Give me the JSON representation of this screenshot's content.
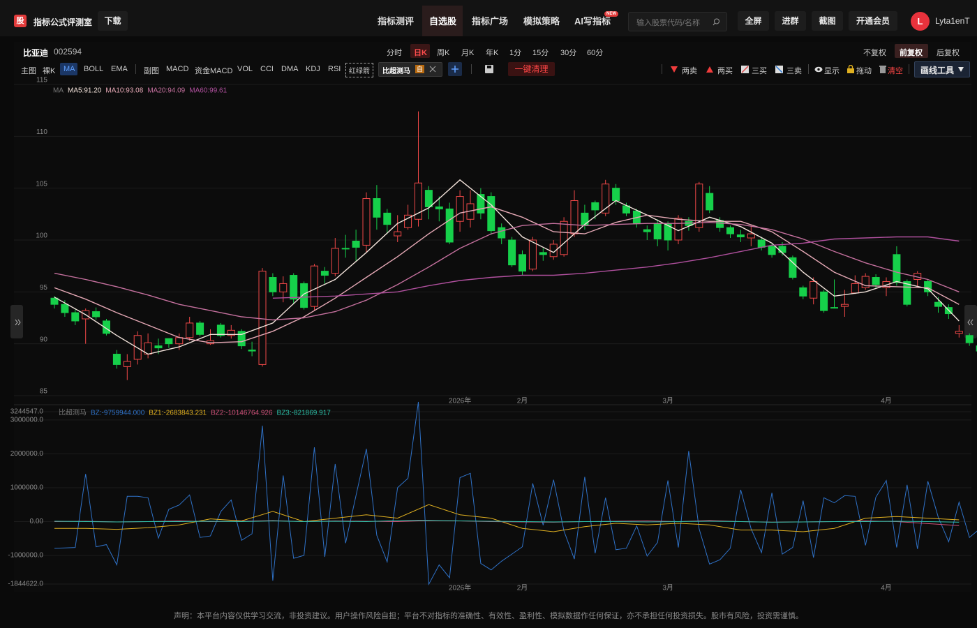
{
  "header": {
    "logo": "股",
    "app_title": "指标公式评测室",
    "download": "下载",
    "nav": [
      "指标测评",
      "自选股",
      "指标广场",
      "模拟策略",
      "AI写指标"
    ],
    "nav_badge": "NEW",
    "search_placeholder": "输入股票代码/名称",
    "buttons": [
      "全屏",
      "进群",
      "截图",
      "开通会员"
    ],
    "avatar": "L",
    "username": "Lyta1enT"
  },
  "stock": {
    "name": "比亚迪",
    "code": "002594",
    "periods": [
      "分时",
      "日K",
      "周K",
      "月K",
      "年K",
      "1分",
      "15分",
      "30分",
      "60分"
    ],
    "adjust": [
      "不复权",
      "前复权",
      "后复权"
    ]
  },
  "toolbar": {
    "main_label": "主图",
    "main": [
      "裸K",
      "MA",
      "BOLL",
      "EMA"
    ],
    "sub_label": "副图",
    "sub": [
      "MACD",
      "资金MACD",
      "VOL",
      "CCI",
      "DMA",
      "KDJ",
      "RSI"
    ],
    "arrow": "红绿箭",
    "chip": "比超测马",
    "chip_tag": "自",
    "clear": "一键清理",
    "signals": [
      "两卖",
      "两买",
      "三买",
      "三卖"
    ],
    "view": [
      "显示",
      "拖动",
      "清空"
    ],
    "draw_tool": "画线工具"
  },
  "chart_data": [
    {
      "type": "candlestick",
      "legend_title": "MA",
      "categories": [
        null,
        null,
        null,
        null,
        null,
        null,
        null,
        null,
        null,
        null,
        null,
        null,
        null,
        null,
        null,
        null,
        null,
        null,
        null,
        null,
        null,
        null,
        null,
        null,
        null,
        null,
        null,
        null,
        null,
        null,
        null,
        null,
        null,
        null,
        null,
        null,
        null,
        null,
        null,
        "2026年",
        null,
        null,
        null,
        null,
        null,
        "2月",
        null,
        null,
        null,
        null,
        null,
        null,
        null,
        null,
        null,
        null,
        null,
        null,
        null,
        "3月",
        null,
        null,
        null,
        null,
        null,
        null,
        null,
        null,
        null,
        null,
        null,
        null,
        null,
        null,
        null,
        null,
        null,
        null,
        null,
        null,
        "4月",
        null,
        null,
        null,
        null,
        null,
        null,
        null,
        null,
        null
      ],
      "open": [
        94.4,
        93.8,
        93.0,
        92.4,
        93.1,
        92.2,
        89.0,
        87.8,
        88.5,
        89.0,
        89.8,
        90.5,
        90.0,
        90.6,
        92.0,
        90.0,
        91.8,
        90.8,
        91.2,
        89.4,
        88.0,
        96.4,
        95.0,
        96.6,
        95.8,
        93.6,
        97.0,
        96.8,
        99.2,
        99.9,
        99.5,
        104.0,
        102.6,
        100.4,
        101.2,
        102.0,
        104.8,
        103.2,
        103.0,
        101.8,
        102.0,
        104.4,
        104.2,
        101.2,
        100.0,
        98.6,
        97.2,
        98.8,
        98.4,
        98.6,
        100.6,
        102.6,
        103.6,
        102.6,
        105.0,
        103.3,
        102.8,
        101.0,
        101.6,
        101.6,
        100.0,
        101.8,
        101.2,
        104.5,
        101.9,
        101.2,
        100.5,
        100.2,
        100.0,
        99.4,
        99.4,
        98.3,
        95.4,
        94.4,
        95.0,
        93.5,
        93.6,
        94.9,
        95.4,
        96.4,
        95.4,
        98.6,
        96.0,
        96.2,
        96.0,
        94.0,
        93.5,
        91.0,
        90.8,
        89.8
      ],
      "high": [
        94.6,
        94.2,
        93.3,
        93.4,
        93.5,
        92.4,
        89.4,
        89.0,
        91.2,
        91.0,
        90.5,
        90.5,
        91.0,
        92.6,
        92.2,
        91.4,
        92.0,
        91.8,
        91.4,
        90.2,
        97.3,
        96.8,
        96.5,
        96.8,
        96.0,
        97.7,
        97.4,
        100.2,
        100.5,
        101.0,
        104.6,
        105.3,
        103.0,
        102.4,
        103.4,
        112.4,
        105.2,
        104.2,
        103.6,
        104.8,
        104.8,
        105.0,
        104.6,
        101.6,
        100.3,
        99.0,
        100.3,
        99.2,
        100.0,
        102.2,
        104.8,
        103.4,
        103.8,
        105.8,
        105.4,
        103.6,
        103.0,
        101.4,
        102.0,
        101.8,
        102.4,
        102.2,
        105.6,
        105.2,
        102.2,
        101.4,
        101.0,
        101.4,
        100.3,
        99.6,
        99.8,
        98.5,
        95.6,
        96.4,
        95.2,
        96.2,
        95.2,
        96.6,
        96.8,
        96.7,
        96.4,
        99.4,
        96.2,
        97.0,
        96.2,
        94.5,
        93.8,
        91.8,
        91.0,
        90.5
      ],
      "low": [
        93.4,
        92.6,
        91.8,
        90.0,
        92.3,
        90.8,
        87.6,
        86.5,
        88.0,
        88.6,
        89.0,
        89.6,
        89.4,
        90.3,
        90.7,
        89.9,
        90.6,
        90.5,
        89.5,
        88.8,
        87.8,
        94.6,
        94.0,
        93.8,
        93.3,
        93.2,
        95.8,
        96.5,
        98.3,
        98.0,
        98.8,
        101.0,
        100.6,
        99.8,
        101.0,
        101.3,
        102.0,
        101.8,
        99.6,
        100.8,
        101.2,
        102.0,
        100.5,
        99.6,
        97.4,
        96.6,
        97.0,
        98.0,
        98.1,
        98.4,
        100.3,
        101.0,
        102.0,
        102.3,
        103.4,
        102.3,
        101.2,
        100.0,
        99.4,
        99.0,
        99.6,
        100.9,
        100.8,
        102.6,
        100.8,
        100.2,
        99.8,
        99.4,
        99.0,
        98.3,
        98.5,
        96.2,
        94.3,
        93.8,
        93.0,
        93.4,
        92.6,
        94.8,
        95.2,
        95.3,
        94.6,
        95.6,
        93.6,
        95.5,
        94.6,
        93.0,
        92.4,
        90.6,
        89.8,
        89.0
      ],
      "close": [
        93.8,
        93.0,
        92.2,
        93.2,
        92.6,
        91.0,
        88.0,
        88.3,
        90.8,
        90.1,
        89.6,
        90.0,
        90.6,
        92.0,
        90.9,
        90.3,
        90.8,
        91.3,
        89.8,
        89.3,
        97.0,
        95.0,
        95.8,
        94.3,
        93.5,
        97.5,
        96.6,
        99.2,
        99.2,
        99.3,
        104.0,
        102.2,
        101.5,
        100.8,
        102.4,
        105.5,
        103.2,
        103.0,
        99.8,
        104.2,
        103.5,
        102.6,
        100.9,
        100.2,
        97.6,
        97.0,
        100.0,
        98.6,
        99.6,
        101.8,
        103.8,
        101.4,
        102.9,
        105.4,
        103.8,
        102.6,
        101.6,
        100.8,
        100.1,
        100.0,
        102.1,
        101.4,
        105.4,
        102.9,
        101.2,
        100.6,
        100.3,
        100.6,
        99.3,
        98.6,
        98.8,
        96.4,
        94.6,
        96.0,
        93.2,
        93.5,
        93.8,
        95.8,
        96.5,
        95.7,
        96.0,
        95.9,
        93.8,
        96.8,
        95.0,
        93.6,
        92.9,
        91.2,
        90.1,
        89.3
      ],
      "up_color": "#f04848",
      "down_color": "#16d04a",
      "ylim": [
        85,
        115
      ],
      "yticks": [
        85,
        90,
        95,
        100,
        105,
        110,
        115
      ],
      "grid": true,
      "ma_x": [
        0,
        3,
        6,
        9,
        12,
        15,
        18,
        21,
        24,
        27,
        30,
        33,
        36,
        39,
        42,
        45,
        48,
        51,
        54,
        57,
        60,
        63,
        66,
        69,
        72,
        75,
        78,
        81,
        84,
        87
      ],
      "ma_series": [
        {
          "name": "MA5:91.20",
          "color": "#f2e2da",
          "values": [
            94.5,
            92.8,
            90.8,
            89.0,
            89.7,
            90.9,
            90.9,
            92.0,
            94.8,
            96.2,
            98.8,
            101.6,
            103.1,
            105.8,
            103.4,
            100.3,
            98.8,
            101.5,
            103.8,
            102.4,
            100.9,
            102.2,
            101.3,
            99.7,
            96.9,
            94.6,
            95.0,
            96.0,
            95.3,
            92.2
          ]
        },
        {
          "name": "MA10:93.08",
          "color": "#e6a9b6",
          "values": [
            95.4,
            94.3,
            93.0,
            91.8,
            90.6,
            90.1,
            90.2,
            91.2,
            92.6,
            94.4,
            96.4,
            98.4,
            100.6,
            102.6,
            103.2,
            102.2,
            100.8,
            100.6,
            101.7,
            102.4,
            102.0,
            101.8,
            101.8,
            100.8,
            98.9,
            96.9,
            95.6,
            95.5,
            95.4,
            93.8
          ]
        },
        {
          "name": "MA20:94.09",
          "color": "#c5709e",
          "values": [
            96.8,
            96.2,
            95.5,
            94.7,
            93.8,
            93.2,
            92.6,
            92.3,
            92.5,
            93.1,
            94.2,
            95.7,
            97.4,
            99.2,
            100.6,
            101.4,
            101.6,
            101.4,
            101.5,
            101.6,
            101.6,
            101.7,
            101.5,
            101.0,
            100.1,
            98.9,
            97.8,
            96.9,
            96.2,
            95.0
          ]
        },
        {
          "name": "MA60:99.61",
          "color": "#b0509e",
          "values": [
            null,
            null,
            null,
            null,
            null,
            null,
            null,
            94.4,
            94.5,
            94.6,
            94.8,
            95.0,
            95.6,
            96.1,
            96.4,
            96.6,
            96.6,
            96.8,
            97.1,
            97.4,
            97.8,
            98.3,
            98.9,
            99.5,
            99.7,
            100.1,
            100.2,
            100.3,
            100.3,
            99.9
          ]
        }
      ]
    },
    {
      "type": "line",
      "title": "比超测马",
      "categories": [
        null,
        null,
        null,
        null,
        null,
        null,
        null,
        null,
        null,
        null,
        null,
        null,
        null,
        null,
        null,
        null,
        null,
        null,
        null,
        null,
        null,
        null,
        null,
        null,
        null,
        null,
        null,
        null,
        null,
        null,
        null,
        null,
        null,
        null,
        null,
        null,
        null,
        null,
        null,
        "2026年",
        null,
        null,
        null,
        null,
        null,
        "2月",
        null,
        null,
        null,
        null,
        null,
        null,
        null,
        null,
        null,
        null,
        null,
        null,
        null,
        "3月",
        null,
        null,
        null,
        null,
        null,
        null,
        null,
        null,
        null,
        null,
        null,
        null,
        null,
        null,
        null,
        null,
        null,
        null,
        null,
        null,
        "4月",
        null,
        null,
        null,
        null,
        null,
        null,
        null,
        null,
        null
      ],
      "ylim": [
        -1844622,
        3244547
      ],
      "yticks": [
        {
          "value": -1844622,
          "label": "-1844622.0"
        },
        {
          "value": -1000000,
          "label": "-1000000.0"
        },
        {
          "value": 0,
          "label": "0.00"
        },
        {
          "value": 1000000,
          "label": "1000000.0"
        },
        {
          "value": 2000000,
          "label": "2000000.0"
        },
        {
          "value": 3000000,
          "label": "3000000.0"
        },
        {
          "value": 3244547,
          "label": "3244547.0"
        }
      ],
      "grid": true,
      "series": [
        {
          "name": "BZ:-9759944.000",
          "color": "#2f72c8",
          "values": [
            -787000,
            -780000,
            -766000,
            1404000,
            -745000,
            -681000,
            -1277000,
            745000,
            745000,
            702000,
            -489000,
            362000,
            489000,
            787000,
            -468000,
            -426000,
            298000,
            638000,
            -553000,
            -362000,
            2830000,
            -1745000,
            1362000,
            -1085000,
            -1000000,
            2192000,
            -1043000,
            1702000,
            -638000,
            766000,
            2149000,
            -404000,
            -1191000,
            1000000,
            1277000,
            3532000,
            -1851000,
            -1277000,
            -1660000,
            1298000,
            1426000,
            -1234000,
            -1426000,
            -1170000,
            -958000,
            -745000,
            1128000,
            -106000,
            1234000,
            -277000,
            -1106000,
            1319000,
            -936000,
            702000,
            -830000,
            -787000,
            -128000,
            -1021000,
            -617000,
            1213000,
            -766000,
            2085000,
            -213000,
            -1255000,
            -1128000,
            -787000,
            936000,
            -213000,
            -915000,
            851000,
            -958000,
            -766000,
            617000,
            -1064000,
            702000,
            553000,
            766000,
            745000,
            -702000,
            723000,
            1213000,
            -766000,
            1085000,
            -809000,
            1191000,
            128000,
            -596000,
            574000,
            -468000,
            -213000
          ]
        },
        {
          "name": "BZ1:-2683843.231",
          "color": "#e0b020",
          "x": [
            0,
            3,
            6,
            9,
            12,
            15,
            18,
            21,
            24,
            27,
            30,
            33,
            36,
            39,
            42,
            45,
            48,
            51,
            54,
            57,
            60,
            63,
            66,
            69,
            72,
            75,
            78,
            81,
            84,
            87
          ],
          "values": [
            -200000,
            -200000,
            -230000,
            -180000,
            -100000,
            80000,
            20000,
            300000,
            0,
            100000,
            200000,
            100000,
            500000,
            200000,
            100000,
            -200000,
            -300000,
            -150000,
            -50000,
            -100000,
            -50000,
            -100000,
            -250000,
            -250000,
            -300000,
            -200000,
            100000,
            150000,
            100000,
            50000
          ]
        },
        {
          "name": "BZ2:-10146764.926",
          "color": "#d0527a",
          "x": [
            0,
            3,
            6,
            9,
            12,
            15,
            18,
            21,
            24,
            27,
            30,
            33,
            36,
            39,
            42,
            45,
            48,
            51,
            54,
            57,
            60,
            63,
            66,
            69,
            72,
            75,
            78,
            81,
            84,
            87
          ],
          "values": [
            0,
            10000,
            -10000,
            0,
            20000,
            0,
            10000,
            30000,
            0,
            20000,
            10000,
            0,
            30000,
            20000,
            0,
            -10000,
            -20000,
            0,
            10000,
            20000,
            0,
            30000,
            0,
            -20000,
            -10000,
            0,
            20000,
            0,
            -60000,
            -120000
          ]
        },
        {
          "name": "BZ3:-821869.917",
          "color": "#2cc0a8",
          "x": [
            0,
            3,
            6,
            9,
            12,
            15,
            18,
            21,
            24,
            27,
            30,
            33,
            36,
            39,
            42,
            45,
            48,
            51,
            54,
            57,
            60,
            63,
            66,
            69,
            72,
            75,
            78,
            81,
            84,
            87
          ],
          "values": [
            10000,
            0,
            -10000,
            0,
            0,
            10000,
            0,
            20000,
            0,
            10000,
            0,
            30000,
            40000,
            20000,
            10000,
            0,
            -10000,
            0,
            0,
            -10000,
            0,
            10000,
            0,
            -20000,
            -10000,
            0,
            0,
            10000,
            0,
            -20000
          ]
        }
      ]
    }
  ],
  "footer": "声明：本平台内容仅供学习交流，非投资建议。用户操作风险自担；平台不对指标的准确性、有效性、盈利性、模拟数据作任何保证，亦不承担任何投资损失。股市有风险，投资需谨慎。"
}
